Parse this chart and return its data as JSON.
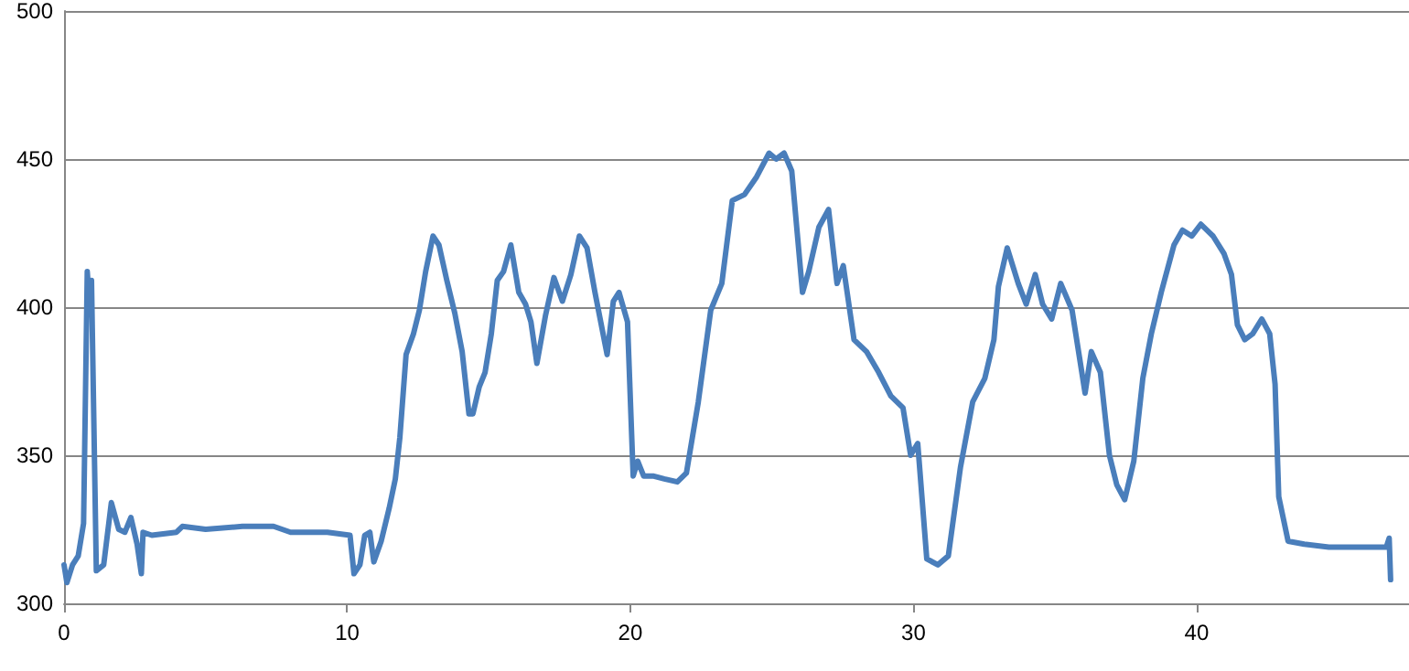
{
  "chart_data": {
    "type": "line",
    "color": "#4a7ebb",
    "line_style": "solid",
    "marker": "none",
    "grid": "y",
    "x": [
      0,
      0.1,
      0.3,
      0.5,
      0.69,
      0.82,
      0.92,
      0.97,
      1.14,
      1.4,
      1.67,
      1.93,
      2.15,
      2.36,
      2.58,
      2.73,
      2.79,
      3.1,
      3.97,
      4.18,
      5.0,
      6.3,
      7.4,
      8.0,
      9.3,
      10.1,
      10.24,
      10.45,
      10.62,
      10.8,
      10.94,
      11.2,
      11.48,
      11.7,
      11.86,
      12.08,
      12.34,
      12.55,
      12.77,
      13.03,
      13.24,
      13.52,
      13.8,
      14.06,
      14.3,
      14.44,
      14.66,
      14.87,
      15.09,
      15.3,
      15.52,
      15.78,
      16.06,
      16.3,
      16.49,
      16.7,
      17.0,
      17.3,
      17.6,
      17.9,
      18.2,
      18.47,
      18.75,
      19.18,
      19.4,
      19.6,
      19.9,
      20.1,
      20.26,
      20.47,
      20.8,
      21.2,
      21.66,
      21.98,
      22.4,
      22.84,
      23.23,
      23.6,
      24.03,
      24.46,
      24.9,
      25.15,
      25.43,
      25.7,
      26.08,
      26.3,
      26.66,
      27.0,
      27.3,
      27.52,
      27.9,
      28.34,
      28.77,
      29.2,
      29.63,
      29.9,
      30.15,
      30.47,
      30.86,
      31.23,
      31.66,
      32.09,
      32.52,
      32.84,
      33.0,
      33.31,
      33.7,
      33.98,
      34.3,
      34.56,
      34.88,
      35.2,
      35.6,
      36.06,
      36.28,
      36.6,
      36.92,
      37.18,
      37.46,
      37.78,
      38.1,
      38.4,
      38.75,
      39.2,
      39.5,
      39.83,
      40.15,
      40.58,
      40.97,
      41.23,
      41.44,
      41.7,
      41.98,
      42.3,
      42.58,
      42.77,
      42.9,
      43.23,
      43.8,
      44.67,
      45.74,
      46.7,
      46.8,
      46.85
    ],
    "values": [
      313,
      307,
      313,
      316,
      327,
      412,
      398,
      409,
      311,
      313,
      334,
      325,
      324,
      329,
      320,
      310,
      324,
      323,
      324,
      326,
      325,
      326,
      326,
      324,
      324,
      323,
      310,
      313,
      323,
      324,
      314,
      321,
      332,
      342,
      356,
      384,
      391,
      399,
      412,
      424,
      421,
      409,
      398,
      385,
      364,
      364,
      373,
      378,
      391,
      409,
      412,
      421,
      405,
      401,
      395,
      381,
      397,
      410,
      402,
      411,
      424,
      420,
      405,
      384,
      402,
      405,
      395,
      343,
      348,
      343,
      343,
      342,
      341,
      344,
      368,
      399,
      408,
      436,
      438,
      444,
      452,
      450,
      452,
      446,
      405,
      412,
      427,
      433,
      408,
      414,
      389,
      385,
      378,
      370,
      366,
      350,
      354,
      315,
      313,
      316,
      346,
      368,
      376,
      389,
      407,
      420,
      408,
      401,
      411,
      401,
      396,
      408,
      399,
      371,
      385,
      378,
      350,
      340,
      335,
      348,
      376,
      391,
      405,
      421,
      426,
      424,
      428,
      424,
      418,
      411,
      394,
      389,
      391,
      396,
      391,
      374,
      336,
      321,
      320,
      319,
      319,
      319,
      322,
      308
    ],
    "xlim": [
      0,
      47.5
    ],
    "xticks": [
      0,
      10,
      20,
      30,
      40
    ],
    "ylim": [
      300,
      500
    ],
    "yticks": [
      300,
      350,
      400,
      450,
      500
    ]
  }
}
